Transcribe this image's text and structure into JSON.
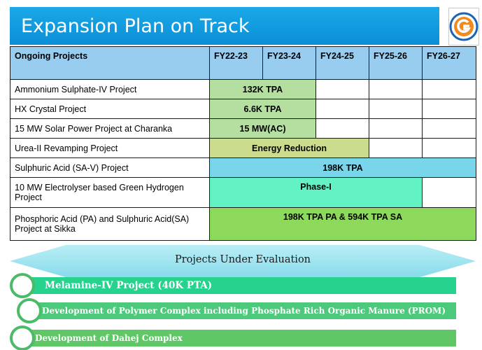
{
  "header": {
    "title": "Expansion Plan on Track",
    "logo_icon": "gsfc-logo-icon"
  },
  "table": {
    "headers": [
      "Ongoing Projects",
      "FY22-23",
      "FY23-24",
      "FY24-25",
      "FY25-26",
      "FY26-27"
    ],
    "rows": [
      {
        "project": "Ammonium Sulphate-IV Project",
        "bar": "132K TPA",
        "color": "#b5dfa1"
      },
      {
        "project": "HX Crystal Project",
        "bar": "6.6K TPA",
        "color": "#b5dfa1"
      },
      {
        "project": "15 MW Solar Power Project at Charanka",
        "bar": "15 MW(AC)",
        "color": "#b5dfa1"
      },
      {
        "project": "Urea-II Revamping Project",
        "bar": "Energy Reduction",
        "color": "#ccdc8e"
      },
      {
        "project": "Sulphuric Acid (SA-V) Project",
        "bar": "198K TPA",
        "color": "#79d6ea"
      },
      {
        "project": "10 MW Electrolyser based Green Hydrogen Project",
        "bar": "Phase-I",
        "color": "#62f2c4"
      },
      {
        "project": "Phosphoric Acid (PA) and Sulphuric Acid(SA) Project at Sikka",
        "bar": "198K TPA PA & 594K TPA SA",
        "color": "#8cd95b"
      }
    ]
  },
  "evaluation": {
    "heading": "Projects Under Evaluation",
    "items": [
      {
        "label": "Melamine-IV Project (40K PTA)",
        "color": "#27d28f"
      },
      {
        "label": "Development of Polymer Complex including Phosphate Rich Organic Manure (PROM)",
        "color": "#4cc97a"
      },
      {
        "label": "Development of Dahej Complex",
        "color": "#5fc766"
      }
    ]
  }
}
